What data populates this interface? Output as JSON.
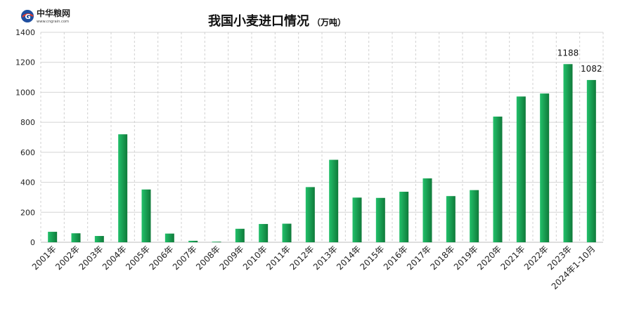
{
  "brand": {
    "name": "中华粮网",
    "url": "www.cngrain.com"
  },
  "colors": {
    "bar_light": "#22c06a",
    "bar_dark": "#0f7a3a",
    "grid": "#d4d4d4",
    "vgrid": "#d0d0d0",
    "text": "#222222"
  },
  "chart_data": {
    "type": "bar",
    "title": "我国小麦进口情况",
    "unit": "（万吨）",
    "categories": [
      "2001年",
      "2002年",
      "2003年",
      "2004年",
      "2005年",
      "2006年",
      "2007年",
      "2008年",
      "2009年",
      "2010年",
      "2011年",
      "2012年",
      "2013年",
      "2014年",
      "2015年",
      "2016年",
      "2017年",
      "2018年",
      "2019年",
      "2020年",
      "2021年",
      "2022年",
      "2023年",
      "2024年1-10月"
    ],
    "series": [
      {
        "values": [
          70,
          60,
          42,
          720,
          352,
          58,
          10,
          4,
          90,
          122,
          124,
          368,
          550,
          298,
          296,
          337,
          426,
          308,
          348,
          838,
          972,
          992,
          1188,
          1082
        ]
      }
    ],
    "data_labels": [
      {
        "category": "2023年",
        "text": "1188"
      },
      {
        "category": "2024年1-10月",
        "text": "1082"
      }
    ],
    "y_ticks": [
      0,
      200,
      400,
      600,
      800,
      1000,
      1200,
      1400
    ],
    "ylim": [
      0,
      1400
    ],
    "grid": true,
    "legend": false
  }
}
